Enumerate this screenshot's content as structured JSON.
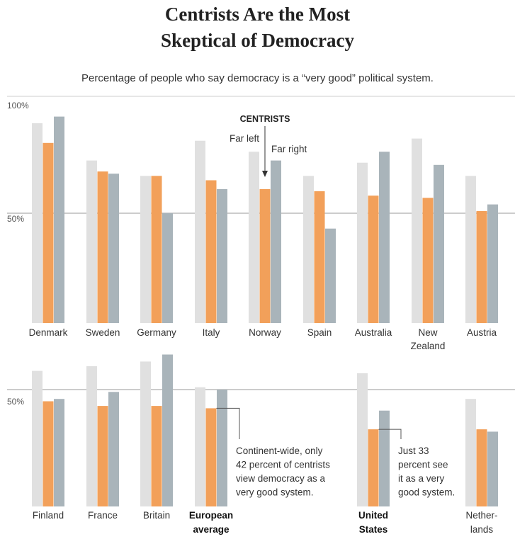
{
  "title_line1": "Centrists Are the Most",
  "title_line2": "Skeptical of Democracy",
  "subtitle": "Percentage of people who say democracy is a “very good” political system.",
  "colors": {
    "far_left": "#e0e0e0",
    "centrists": "#f2a05a",
    "far_right": "#a9b4ba",
    "gridline": "#cccccc"
  },
  "chart_data": [
    {
      "type": "bar",
      "categories": [
        [
          "Denmark"
        ],
        [
          "Sweden"
        ],
        [
          "Germany"
        ],
        [
          "Italy"
        ],
        [
          "Norway"
        ],
        [
          "Spain"
        ],
        [
          "Australia"
        ],
        [
          "New",
          "Zealand"
        ],
        [
          "Austria"
        ]
      ],
      "series": [
        {
          "name": "Far left",
          "values": [
            91,
            74,
            67,
            83,
            78,
            67,
            73,
            84,
            67
          ]
        },
        {
          "name": "CENTRISTS",
          "values": [
            82,
            69,
            67,
            65,
            61,
            60,
            58,
            57,
            51
          ]
        },
        {
          "name": "Far right",
          "values": [
            94,
            68,
            50,
            61,
            74,
            43,
            78,
            72,
            54
          ]
        }
      ],
      "axis_labels": [
        "100%",
        "50%"
      ],
      "ylim": [
        0,
        100
      ],
      "gridline": 50
    },
    {
      "type": "bar",
      "categories": [
        [
          "Finland"
        ],
        [
          "France"
        ],
        [
          "Britain"
        ],
        [
          "European",
          "average"
        ],
        [
          "United",
          "States"
        ],
        [
          "Nether-",
          "lands"
        ]
      ],
      "bold_categories": [
        "European average",
        "United States"
      ],
      "series": [
        {
          "name": "Far left",
          "values": [
            58,
            60,
            62,
            51,
            57,
            46
          ]
        },
        {
          "name": "CENTRISTS",
          "values": [
            45,
            43,
            43,
            42,
            33,
            33
          ]
        },
        {
          "name": "Far right",
          "values": [
            46,
            49,
            65,
            50,
            41,
            32
          ]
        }
      ],
      "axis_labels": [
        "50%"
      ],
      "ylim": [
        0,
        80
      ],
      "gridline": 50
    }
  ],
  "legend_annotations": {
    "centrists": "CENTRISTS",
    "far_left": "Far left",
    "far_right": "Far right"
  },
  "annotations": {
    "european": [
      "Continent-wide, only",
      "42 percent of centrists",
      "view democracy as a",
      "very good system."
    ],
    "us": [
      "Just 33",
      "percent see",
      "it as a very",
      "good system."
    ]
  }
}
